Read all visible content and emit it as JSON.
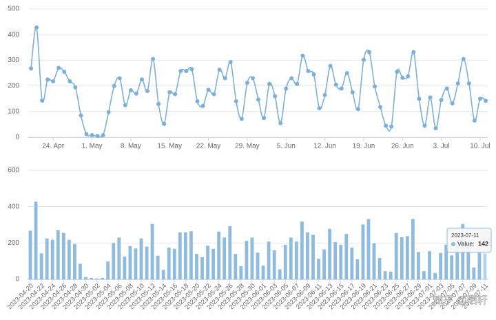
{
  "chart_data": [
    {
      "type": "line",
      "color": "#7cb0d8",
      "categories": [
        null,
        null,
        null,
        null,
        "24. Apr",
        null,
        null,
        null,
        null,
        null,
        null,
        "1. May",
        null,
        null,
        null,
        null,
        null,
        null,
        "8. May",
        null,
        null,
        null,
        null,
        null,
        null,
        "15. May",
        null,
        null,
        null,
        null,
        null,
        null,
        "22. May",
        null,
        null,
        null,
        null,
        null,
        null,
        "29. May",
        null,
        null,
        null,
        null,
        null,
        null,
        "5. Jun",
        null,
        null,
        null,
        null,
        null,
        null,
        "12. Jun",
        null,
        null,
        null,
        null,
        null,
        null,
        "19. Jun",
        null,
        null,
        null,
        null,
        null,
        null,
        "26. Jun",
        null,
        null,
        null,
        null,
        null,
        null,
        "3. Jul",
        null,
        null,
        null,
        null,
        null,
        null,
        "10. Jul",
        null
      ],
      "series": [
        {
          "name": "Value",
          "color": "#7cb0d8",
          "values": [
            268,
            428,
            143,
            225,
            218,
            270,
            255,
            218,
            195,
            85,
            12,
            8,
            5,
            8,
            98,
            200,
            230,
            125,
            183,
            170,
            225,
            180,
            305,
            130,
            52,
            175,
            168,
            258,
            258,
            265,
            140,
            122,
            185,
            168,
            263,
            230,
            293,
            140,
            72,
            212,
            230,
            147,
            75,
            208,
            160,
            55,
            190,
            230,
            208,
            318,
            258,
            245,
            113,
            165,
            278,
            205,
            190,
            250,
            175,
            110,
            302,
            332,
            198,
            118,
            45,
            42,
            255,
            232,
            238,
            332,
            150,
            45,
            155,
            35,
            145,
            190,
            132,
            210,
            305,
            210,
            65,
            150,
            142
          ]
        }
      ],
      "ylim": [
        0,
        500
      ],
      "yticks": [
        0,
        100,
        200,
        300,
        400,
        500
      ],
      "grid": true
    },
    {
      "type": "bar",
      "color": "#8fbcde",
      "categories": [
        "2023-04-20",
        null,
        "2023-04-22",
        null,
        "2023-04-24",
        null,
        "2023-04-26",
        null,
        "2023-04-28",
        null,
        "2023-04-30",
        null,
        "2023-05-02",
        null,
        "2023-05-04",
        null,
        "2023-05-06",
        null,
        "2023-05-08",
        null,
        "2023-05-10",
        null,
        "2023-05-12",
        null,
        "2023-05-14",
        null,
        "2023-05-16",
        null,
        "2023-05-18",
        null,
        "2023-05-20",
        null,
        "2023-05-22",
        null,
        "2023-05-24",
        null,
        "2023-05-26",
        null,
        "2023-05-28",
        null,
        "2023-05-30",
        null,
        "2023-06-01",
        null,
        "2023-06-03",
        null,
        "2023-06-05",
        null,
        "2023-06-07",
        null,
        "2023-06-09",
        null,
        "2023-06-11",
        null,
        "2023-06-13",
        null,
        "2023-06-15",
        null,
        "2023-06-17",
        null,
        "2023-06-19",
        null,
        "2023-06-21",
        null,
        "2023-06-23",
        null,
        "2023-06-25",
        null,
        "2023-06-27",
        null,
        "2023-06-29",
        null,
        "2023-07-01",
        null,
        "2023-07-03",
        null,
        "2023-07-05",
        null,
        "2023-07-07",
        null,
        "2023-07-09",
        null,
        "2023-07-11"
      ],
      "series": [
        {
          "name": "Value",
          "color": "#8fbcde",
          "values": [
            268,
            428,
            143,
            225,
            218,
            270,
            255,
            218,
            195,
            85,
            12,
            8,
            5,
            8,
            98,
            200,
            230,
            125,
            183,
            170,
            225,
            180,
            305,
            130,
            52,
            175,
            168,
            258,
            258,
            265,
            140,
            122,
            185,
            168,
            263,
            230,
            293,
            140,
            72,
            212,
            230,
            147,
            75,
            208,
            160,
            55,
            190,
            230,
            208,
            318,
            258,
            245,
            113,
            165,
            278,
            205,
            190,
            250,
            175,
            110,
            302,
            332,
            198,
            118,
            45,
            42,
            255,
            232,
            238,
            332,
            150,
            45,
            155,
            35,
            145,
            190,
            132,
            210,
            305,
            210,
            65,
            150,
            142
          ]
        }
      ],
      "ylim": [
        0,
        600
      ],
      "yticks": [
        0,
        200,
        400,
        600
      ],
      "grid": true,
      "tooltip": {
        "label": "Value:"
      }
    }
  ],
  "watermark": "知乎 @陌轩"
}
